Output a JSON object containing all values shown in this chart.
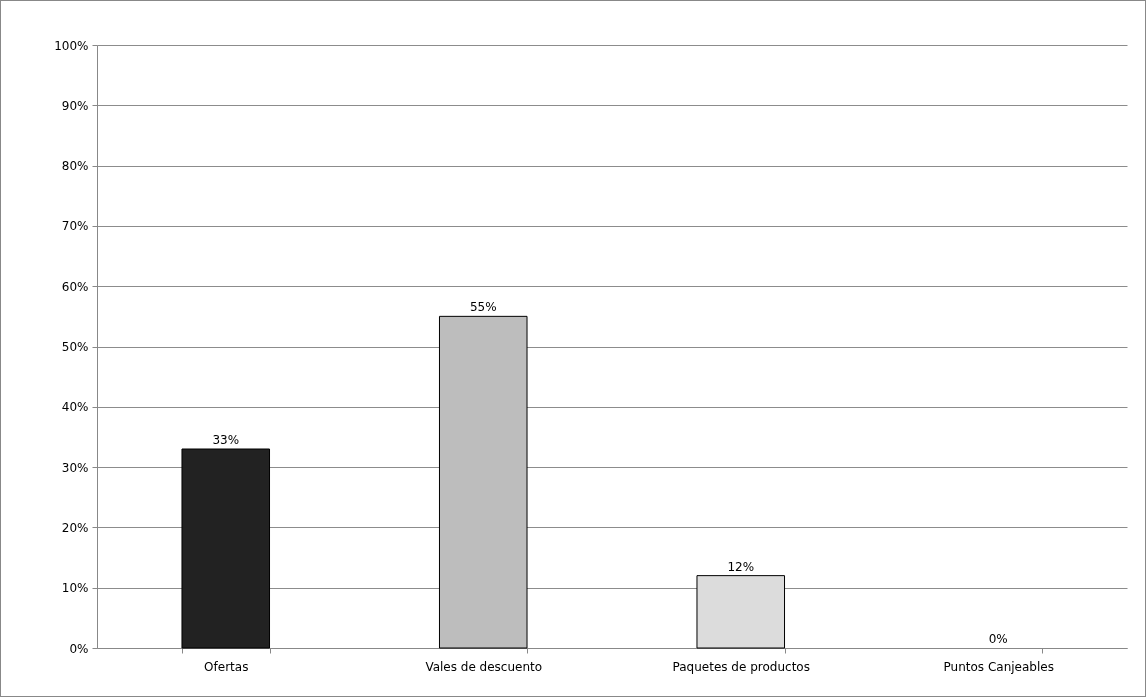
{
  "chart_data": {
    "type": "bar",
    "categories": [
      "Ofertas",
      "Vales de descuento",
      "Paquetes de productos",
      "Puntos Canjeables"
    ],
    "values": [
      33,
      55,
      12,
      0
    ],
    "colors": [
      "#222222",
      "#bdbdbd",
      "#dcdcdc",
      null
    ],
    "value_labels": [
      "33%",
      "55%",
      "12%",
      "0%"
    ],
    "ylim": [
      0,
      100
    ],
    "yticks": [
      {
        "value": 0,
        "label": "0%"
      },
      {
        "value": 10,
        "label": "10%"
      },
      {
        "value": 20,
        "label": "20%"
      },
      {
        "value": 30,
        "label": "30%"
      },
      {
        "value": 40,
        "label": "40%"
      },
      {
        "value": 50,
        "label": "50%"
      },
      {
        "value": 60,
        "label": "60%"
      },
      {
        "value": 70,
        "label": "70%"
      },
      {
        "value": 80,
        "label": "80%"
      },
      {
        "value": 90,
        "label": "90%"
      },
      {
        "value": 100,
        "label": "100%"
      }
    ],
    "grid": true,
    "legend": false
  }
}
